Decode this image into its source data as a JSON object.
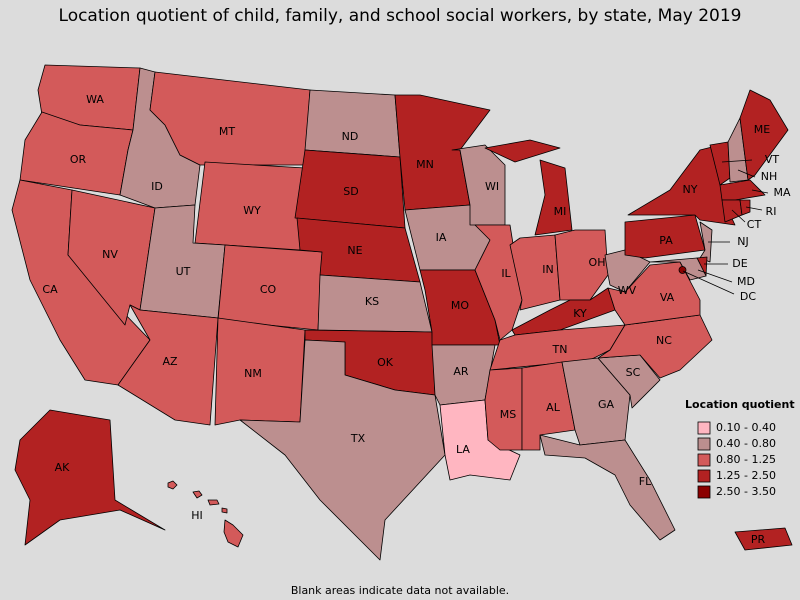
{
  "title": "Location quotient of child, family, and school social workers, by state, May 2019",
  "legend": {
    "title": "Location quotient",
    "entries": [
      {
        "label": "0.10 - 0.40",
        "color": "#ffb6c1"
      },
      {
        "label": "0.40 - 0.80",
        "color": "#bc8f8f"
      },
      {
        "label": "0.80 - 1.25",
        "color": "#d35a5a"
      },
      {
        "label": "1.25 - 2.50",
        "color": "#b22222"
      },
      {
        "label": "2.50 - 3.50",
        "color": "#8b0000"
      }
    ]
  },
  "footnote": "Blank areas indicate data not available.",
  "states": [
    {
      "label": "WA",
      "color": "#d35a5a"
    },
    {
      "label": "OR",
      "color": "#d35a5a"
    },
    {
      "label": "CA",
      "color": "#d35a5a"
    },
    {
      "label": "NV",
      "color": "#d35a5a"
    },
    {
      "label": "ID",
      "color": "#bc8f8f"
    },
    {
      "label": "MT",
      "color": "#d35a5a"
    },
    {
      "label": "WY",
      "color": "#d35a5a"
    },
    {
      "label": "UT",
      "color": "#bc8f8f"
    },
    {
      "label": "CO",
      "color": "#d35a5a"
    },
    {
      "label": "AZ",
      "color": "#d35a5a"
    },
    {
      "label": "NM",
      "color": "#d35a5a"
    },
    {
      "label": "ND",
      "color": "#bc8f8f"
    },
    {
      "label": "SD",
      "color": "#b22222"
    },
    {
      "label": "NE",
      "color": "#b22222"
    },
    {
      "label": "KS",
      "color": "#bc8f8f"
    },
    {
      "label": "OK",
      "color": "#b22222"
    },
    {
      "label": "TX",
      "color": "#bc8f8f"
    },
    {
      "label": "MN",
      "color": "#b22222"
    },
    {
      "label": "IA",
      "color": "#bc8f8f"
    },
    {
      "label": "MO",
      "color": "#b22222"
    },
    {
      "label": "AR",
      "color": "#bc8f8f"
    },
    {
      "label": "LA",
      "color": "#ffb6c1"
    },
    {
      "label": "WI",
      "color": "#bc8f8f"
    },
    {
      "label": "IL",
      "color": "#d35a5a"
    },
    {
      "label": "MI",
      "color": "#b22222"
    },
    {
      "label": "IN",
      "color": "#d35a5a"
    },
    {
      "label": "OH",
      "color": "#d35a5a"
    },
    {
      "label": "KY",
      "color": "#b22222"
    },
    {
      "label": "TN",
      "color": "#d35a5a"
    },
    {
      "label": "MS",
      "color": "#d35a5a"
    },
    {
      "label": "AL",
      "color": "#d35a5a"
    },
    {
      "label": "GA",
      "color": "#bc8f8f"
    },
    {
      "label": "FL",
      "color": "#bc8f8f"
    },
    {
      "label": "SC",
      "color": "#bc8f8f"
    },
    {
      "label": "NC",
      "color": "#d35a5a"
    },
    {
      "label": "VA",
      "color": "#d35a5a"
    },
    {
      "label": "WV",
      "color": "#bc8f8f"
    },
    {
      "label": "PA",
      "color": "#b22222"
    },
    {
      "label": "NY",
      "color": "#b22222"
    },
    {
      "label": "VT",
      "color": "#b22222"
    },
    {
      "label": "NH",
      "color": "#bc8f8f"
    },
    {
      "label": "ME",
      "color": "#b22222"
    },
    {
      "label": "MA",
      "color": "#b22222"
    },
    {
      "label": "CT",
      "color": "#b22222"
    },
    {
      "label": "RI",
      "color": "#b22222"
    },
    {
      "label": "NJ",
      "color": "#bc8f8f"
    },
    {
      "label": "DE",
      "color": "#b22222"
    },
    {
      "label": "MD",
      "color": "#bc8f8f"
    },
    {
      "label": "DC",
      "color": "#8b0000"
    },
    {
      "label": "AK",
      "color": "#b22222"
    },
    {
      "label": "HI",
      "color": "#d35a5a"
    },
    {
      "label": "PR",
      "color": "#b22222"
    }
  ]
}
